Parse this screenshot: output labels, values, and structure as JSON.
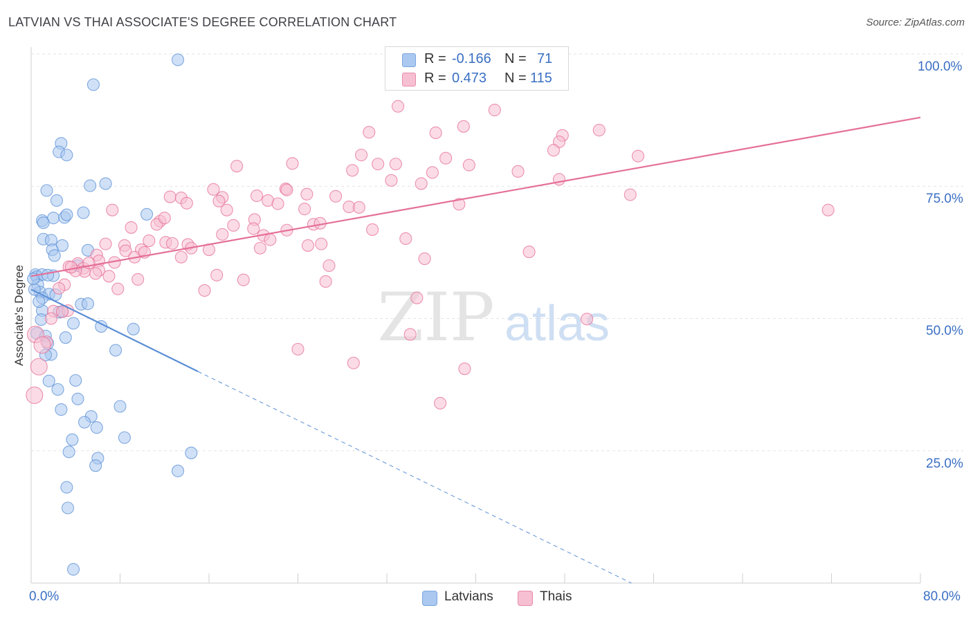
{
  "header": {
    "title": "LATVIAN VS THAI ASSOCIATE'S DEGREE CORRELATION CHART",
    "source": "Source: ZipAtlas.com"
  },
  "legend": {
    "rows": [
      {
        "r_label": "R =",
        "r_value": "-0.166",
        "n_label": "N =",
        "n_value": "71",
        "color": "#aac8f0",
        "border": "#7aa6e0"
      },
      {
        "r_label": "R =",
        "r_value": "0.473",
        "n_label": "N =",
        "n_value": "115",
        "color": "#f7bfd2",
        "border": "#e78aa8"
      }
    ]
  },
  "watermark": {
    "zip": "ZIP",
    "atlas": "atlas"
  },
  "chart_data": {
    "type": "scatter",
    "title": "LATVIAN VS THAI ASSOCIATE'S DEGREE CORRELATION CHART",
    "xlabel": "",
    "ylabel": "Associate's Degree",
    "xlim": [
      0,
      80
    ],
    "ylim": [
      0,
      100
    ],
    "x_tick_labels": [
      "0.0%",
      "80.0%"
    ],
    "y_tick_labels": [
      "100.0%",
      "75.0%",
      "50.0%",
      "25.0%"
    ],
    "y_tick_values": [
      100,
      75,
      50,
      25
    ],
    "grid": true,
    "legend_position": "bottom-center",
    "series": [
      {
        "name": "Latvians",
        "color": "#5b8fd6",
        "fill": "#aac8f0",
        "trend": {
          "x": [
            0,
            15
          ],
          "y": [
            55.5,
            40.0
          ],
          "dashed_to": [
            54,
            0
          ]
        },
        "points": [
          [
            13.2,
            98.9
          ],
          [
            5.6,
            94.2
          ],
          [
            2.7,
            83.1
          ],
          [
            2.5,
            81.5
          ],
          [
            3.2,
            80.9
          ],
          [
            6.7,
            75.5
          ],
          [
            5.3,
            75.1
          ],
          [
            1.4,
            74.2
          ],
          [
            2.3,
            72.3
          ],
          [
            1.0,
            68.5
          ],
          [
            2.0,
            69.0
          ],
          [
            3.0,
            69.1
          ],
          [
            3.2,
            69.6
          ],
          [
            4.7,
            70.0
          ],
          [
            10.4,
            69.7
          ],
          [
            1.1,
            68.1
          ],
          [
            1.1,
            65.0
          ],
          [
            1.8,
            64.8
          ],
          [
            2.8,
            63.8
          ],
          [
            1.9,
            63.0
          ],
          [
            2.1,
            61.9
          ],
          [
            5.1,
            62.9
          ],
          [
            4.2,
            60.0
          ],
          [
            0.4,
            58.3
          ],
          [
            0.5,
            57.9
          ],
          [
            1.0,
            58.3
          ],
          [
            2.0,
            58.1
          ],
          [
            1.5,
            58.2
          ],
          [
            0.6,
            56.4
          ],
          [
            0.8,
            55.0
          ],
          [
            0.3,
            55.5
          ],
          [
            1.6,
            54.6
          ],
          [
            1.0,
            53.9
          ],
          [
            4.5,
            52.7
          ],
          [
            5.1,
            52.8
          ],
          [
            1.0,
            51.5
          ],
          [
            2.8,
            51.3
          ],
          [
            2.5,
            51.2
          ],
          [
            0.9,
            49.8
          ],
          [
            3.8,
            49.1
          ],
          [
            6.3,
            48.5
          ],
          [
            9.2,
            48.0
          ],
          [
            0.5,
            47.2
          ],
          [
            1.3,
            46.7
          ],
          [
            3.1,
            46.4
          ],
          [
            1.5,
            45.3
          ],
          [
            7.6,
            44.0
          ],
          [
            1.8,
            43.2
          ],
          [
            1.3,
            43.1
          ],
          [
            1.6,
            38.2
          ],
          [
            4.0,
            38.3
          ],
          [
            2.4,
            36.6
          ],
          [
            4.2,
            34.8
          ],
          [
            8.0,
            33.4
          ],
          [
            2.7,
            32.8
          ],
          [
            5.4,
            31.5
          ],
          [
            4.8,
            30.4
          ],
          [
            5.9,
            29.4
          ],
          [
            8.4,
            27.5
          ],
          [
            3.7,
            27.1
          ],
          [
            3.4,
            24.8
          ],
          [
            14.4,
            24.6
          ],
          [
            6.0,
            23.6
          ],
          [
            5.8,
            22.2
          ],
          [
            13.2,
            21.2
          ],
          [
            3.2,
            18.1
          ],
          [
            3.3,
            14.2
          ],
          [
            3.8,
            2.6
          ],
          [
            0.2,
            57.5
          ],
          [
            2.2,
            54.5
          ],
          [
            0.7,
            53.2
          ]
        ]
      },
      {
        "name": "Thais",
        "color": "#e56f97",
        "fill": "#f7bfd2",
        "trend": {
          "x": [
            0,
            80
          ],
          "y": [
            58.0,
            88.0
          ]
        },
        "points": [
          [
            33.0,
            90.1
          ],
          [
            41.7,
            89.4
          ],
          [
            38.9,
            86.3
          ],
          [
            51.1,
            85.6
          ],
          [
            30.4,
            85.2
          ],
          [
            36.4,
            85.1
          ],
          [
            47.8,
            84.6
          ],
          [
            47.5,
            83.4
          ],
          [
            47.0,
            81.8
          ],
          [
            54.6,
            80.7
          ],
          [
            29.7,
            80.9
          ],
          [
            37.3,
            80.3
          ],
          [
            23.5,
            79.3
          ],
          [
            31.2,
            79.2
          ],
          [
            32.8,
            79.2
          ],
          [
            39.4,
            79.0
          ],
          [
            18.5,
            78.8
          ],
          [
            28.9,
            78.0
          ],
          [
            36.1,
            77.6
          ],
          [
            43.8,
            77.8
          ],
          [
            32.4,
            76.1
          ],
          [
            35.1,
            75.5
          ],
          [
            47.5,
            76.3
          ],
          [
            16.4,
            74.4
          ],
          [
            22.9,
            74.5
          ],
          [
            23.0,
            74.3
          ],
          [
            24.8,
            73.5
          ],
          [
            12.5,
            73.0
          ],
          [
            13.5,
            72.8
          ],
          [
            17.2,
            72.9
          ],
          [
            20.3,
            73.2
          ],
          [
            27.4,
            73.1
          ],
          [
            21.3,
            72.3
          ],
          [
            16.9,
            72.2
          ],
          [
            14.0,
            71.8
          ],
          [
            22.2,
            71.7
          ],
          [
            38.5,
            71.6
          ],
          [
            53.9,
            73.4
          ],
          [
            71.7,
            70.5
          ],
          [
            7.3,
            70.5
          ],
          [
            17.6,
            70.5
          ],
          [
            24.6,
            70.7
          ],
          [
            28.6,
            71.1
          ],
          [
            20.1,
            68.7
          ],
          [
            11.6,
            68.4
          ],
          [
            11.3,
            67.8
          ],
          [
            18.2,
            67.6
          ],
          [
            9.0,
            67.2
          ],
          [
            25.4,
            67.8
          ],
          [
            23.0,
            66.7
          ],
          [
            30.7,
            66.8
          ],
          [
            17.2,
            65.9
          ],
          [
            20.9,
            65.7
          ],
          [
            21.5,
            64.9
          ],
          [
            33.7,
            65.1
          ],
          [
            10.6,
            64.7
          ],
          [
            12.1,
            64.4
          ],
          [
            12.7,
            64.2
          ],
          [
            6.7,
            64.1
          ],
          [
            14.1,
            64.0
          ],
          [
            24.9,
            63.8
          ],
          [
            26.1,
            64.1
          ],
          [
            14.4,
            63.3
          ],
          [
            20.6,
            63.3
          ],
          [
            8.4,
            63.8
          ],
          [
            9.9,
            63.0
          ],
          [
            8.5,
            62.8
          ],
          [
            44.8,
            62.6
          ],
          [
            5.9,
            62.0
          ],
          [
            9.3,
            61.6
          ],
          [
            6.1,
            60.9
          ],
          [
            13.5,
            61.6
          ],
          [
            7.5,
            60.6
          ],
          [
            35.4,
            61.3
          ],
          [
            26.8,
            60.0
          ],
          [
            4.2,
            60.4
          ],
          [
            3.4,
            59.8
          ],
          [
            4.7,
            59.5
          ],
          [
            6.1,
            59.1
          ],
          [
            4.8,
            58.9
          ],
          [
            5.8,
            58.5
          ],
          [
            16.7,
            58.2
          ],
          [
            9.6,
            57.4
          ],
          [
            19.1,
            57.3
          ],
          [
            26.5,
            57.0
          ],
          [
            3.0,
            56.4
          ],
          [
            15.6,
            55.3
          ],
          [
            7.8,
            55.6
          ],
          [
            2.5,
            55.7
          ],
          [
            34.7,
            53.9
          ],
          [
            3.3,
            51.5
          ],
          [
            2.0,
            51.4
          ],
          [
            1.8,
            50.0
          ],
          [
            50.0,
            49.9
          ],
          [
            0.4,
            47.0
          ],
          [
            34.1,
            47.0
          ],
          [
            24.0,
            44.2
          ],
          [
            1.4,
            45.6
          ],
          [
            29.0,
            41.6
          ],
          [
            39.0,
            40.5
          ],
          [
            0.7,
            40.9
          ],
          [
            0.3,
            35.5
          ],
          [
            36.8,
            34.0
          ],
          [
            2.8,
            51.3
          ],
          [
            10.2,
            62.5
          ],
          [
            16.0,
            63.0
          ],
          [
            20.0,
            67.0
          ],
          [
            26.0,
            68.0
          ],
          [
            29.5,
            71.0
          ],
          [
            12.0,
            69.0
          ],
          [
            7.0,
            58.0
          ],
          [
            4.0,
            59.0
          ],
          [
            1.0,
            45.0
          ],
          [
            3.6,
            59.7
          ],
          [
            5.2,
            60.5
          ]
        ]
      }
    ]
  },
  "bottom_legend": {
    "items": [
      {
        "label": "Latvians",
        "color": "#aac8f0",
        "border": "#7aa6e0"
      },
      {
        "label": "Thais",
        "color": "#f7bfd2",
        "border": "#e78aa8"
      }
    ]
  }
}
